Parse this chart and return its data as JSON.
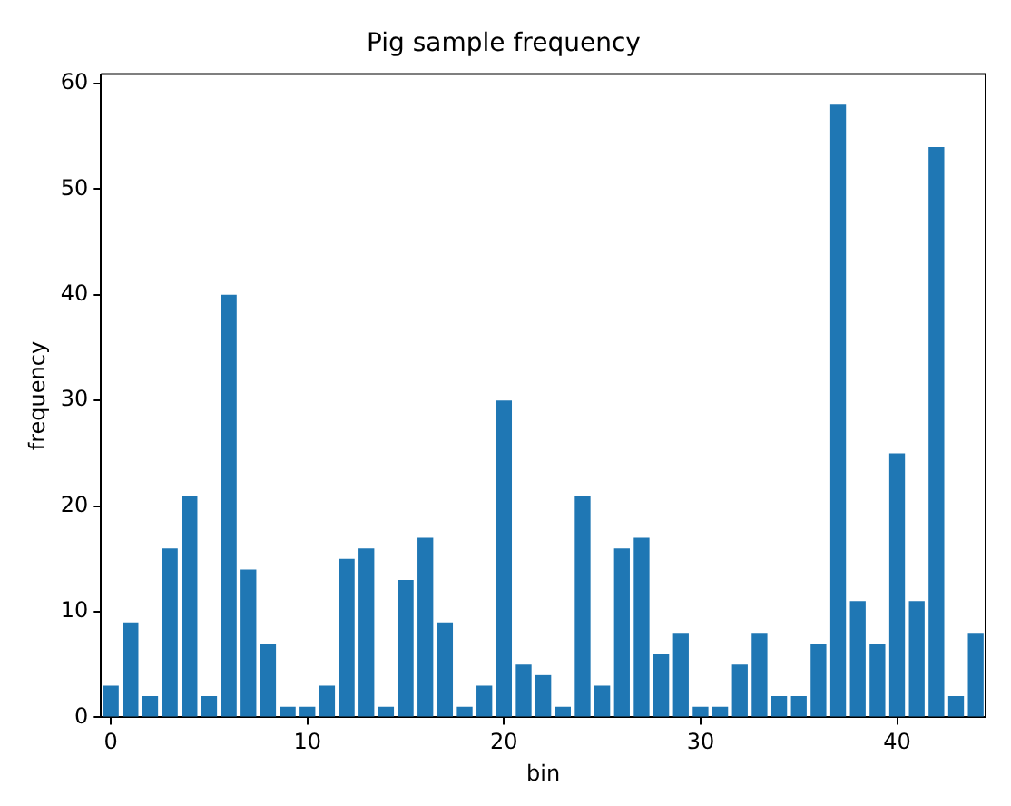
{
  "chart_data": {
    "type": "bar",
    "title": "Pig sample frequency",
    "xlabel": "bin",
    "ylabel": "frequency",
    "categories": [
      "0",
      null,
      null,
      null,
      null,
      null,
      null,
      null,
      null,
      null,
      "10",
      null,
      null,
      null,
      null,
      null,
      null,
      null,
      null,
      null,
      "20",
      null,
      null,
      null,
      null,
      null,
      null,
      null,
      null,
      null,
      "30",
      null,
      null,
      null,
      null,
      null,
      null,
      null,
      null,
      null,
      "40",
      null,
      null,
      null,
      null
    ],
    "values": [
      3,
      9,
      2,
      16,
      21,
      2,
      40,
      14,
      7,
      1,
      1,
      3,
      15,
      16,
      1,
      13,
      17,
      9,
      1,
      3,
      30,
      5,
      4,
      1,
      21,
      3,
      16,
      17,
      6,
      8,
      1,
      1,
      5,
      8,
      2,
      2,
      7,
      58,
      11,
      7,
      25,
      11,
      54,
      2,
      8
    ],
    "color": "#1f77b4",
    "ylim": [
      0,
      60.9
    ],
    "yticks": [
      0,
      10,
      20,
      30,
      40,
      50,
      60
    ],
    "grid": false,
    "legend": false
  }
}
